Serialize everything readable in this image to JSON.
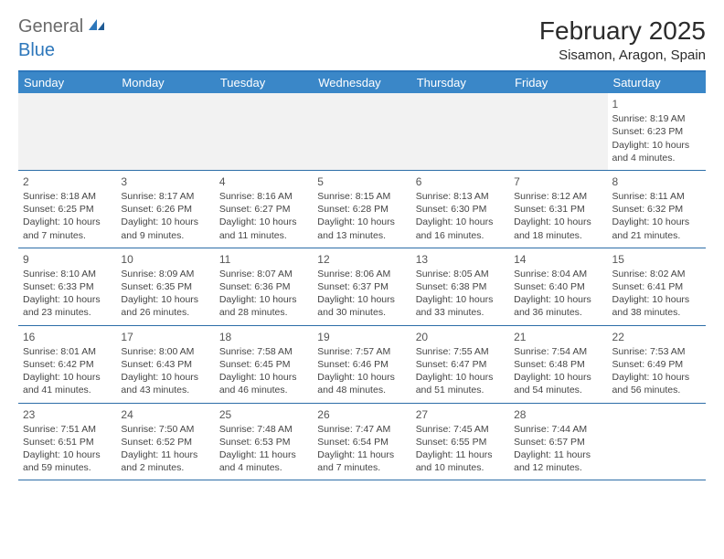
{
  "logo": {
    "general": "General",
    "blue": "Blue"
  },
  "title": "February 2025",
  "location": "Sisamon, Aragon, Spain",
  "colors": {
    "header_bg": "#3a87c8",
    "border": "#2d6ea8",
    "accent": "#2d77bb",
    "empty_bg": "#f2f2f2",
    "text": "#454545",
    "title_text": "#2b2b2b",
    "logo_gray": "#6a6a6a"
  },
  "typography": {
    "title_fontsize": 28,
    "location_fontsize": 15,
    "weekday_fontsize": 13,
    "daynum_fontsize": 12,
    "body_fontsize": 10.5
  },
  "weekdays": [
    "Sunday",
    "Monday",
    "Tuesday",
    "Wednesday",
    "Thursday",
    "Friday",
    "Saturday"
  ],
  "weeks": [
    [
      null,
      null,
      null,
      null,
      null,
      null,
      {
        "n": "1",
        "sr": "Sunrise: 8:19 AM",
        "ss": "Sunset: 6:23 PM",
        "d1": "Daylight: 10 hours",
        "d2": "and 4 minutes."
      }
    ],
    [
      {
        "n": "2",
        "sr": "Sunrise: 8:18 AM",
        "ss": "Sunset: 6:25 PM",
        "d1": "Daylight: 10 hours",
        "d2": "and 7 minutes."
      },
      {
        "n": "3",
        "sr": "Sunrise: 8:17 AM",
        "ss": "Sunset: 6:26 PM",
        "d1": "Daylight: 10 hours",
        "d2": "and 9 minutes."
      },
      {
        "n": "4",
        "sr": "Sunrise: 8:16 AM",
        "ss": "Sunset: 6:27 PM",
        "d1": "Daylight: 10 hours",
        "d2": "and 11 minutes."
      },
      {
        "n": "5",
        "sr": "Sunrise: 8:15 AM",
        "ss": "Sunset: 6:28 PM",
        "d1": "Daylight: 10 hours",
        "d2": "and 13 minutes."
      },
      {
        "n": "6",
        "sr": "Sunrise: 8:13 AM",
        "ss": "Sunset: 6:30 PM",
        "d1": "Daylight: 10 hours",
        "d2": "and 16 minutes."
      },
      {
        "n": "7",
        "sr": "Sunrise: 8:12 AM",
        "ss": "Sunset: 6:31 PM",
        "d1": "Daylight: 10 hours",
        "d2": "and 18 minutes."
      },
      {
        "n": "8",
        "sr": "Sunrise: 8:11 AM",
        "ss": "Sunset: 6:32 PM",
        "d1": "Daylight: 10 hours",
        "d2": "and 21 minutes."
      }
    ],
    [
      {
        "n": "9",
        "sr": "Sunrise: 8:10 AM",
        "ss": "Sunset: 6:33 PM",
        "d1": "Daylight: 10 hours",
        "d2": "and 23 minutes."
      },
      {
        "n": "10",
        "sr": "Sunrise: 8:09 AM",
        "ss": "Sunset: 6:35 PM",
        "d1": "Daylight: 10 hours",
        "d2": "and 26 minutes."
      },
      {
        "n": "11",
        "sr": "Sunrise: 8:07 AM",
        "ss": "Sunset: 6:36 PM",
        "d1": "Daylight: 10 hours",
        "d2": "and 28 minutes."
      },
      {
        "n": "12",
        "sr": "Sunrise: 8:06 AM",
        "ss": "Sunset: 6:37 PM",
        "d1": "Daylight: 10 hours",
        "d2": "and 30 minutes."
      },
      {
        "n": "13",
        "sr": "Sunrise: 8:05 AM",
        "ss": "Sunset: 6:38 PM",
        "d1": "Daylight: 10 hours",
        "d2": "and 33 minutes."
      },
      {
        "n": "14",
        "sr": "Sunrise: 8:04 AM",
        "ss": "Sunset: 6:40 PM",
        "d1": "Daylight: 10 hours",
        "d2": "and 36 minutes."
      },
      {
        "n": "15",
        "sr": "Sunrise: 8:02 AM",
        "ss": "Sunset: 6:41 PM",
        "d1": "Daylight: 10 hours",
        "d2": "and 38 minutes."
      }
    ],
    [
      {
        "n": "16",
        "sr": "Sunrise: 8:01 AM",
        "ss": "Sunset: 6:42 PM",
        "d1": "Daylight: 10 hours",
        "d2": "and 41 minutes."
      },
      {
        "n": "17",
        "sr": "Sunrise: 8:00 AM",
        "ss": "Sunset: 6:43 PM",
        "d1": "Daylight: 10 hours",
        "d2": "and 43 minutes."
      },
      {
        "n": "18",
        "sr": "Sunrise: 7:58 AM",
        "ss": "Sunset: 6:45 PM",
        "d1": "Daylight: 10 hours",
        "d2": "and 46 minutes."
      },
      {
        "n": "19",
        "sr": "Sunrise: 7:57 AM",
        "ss": "Sunset: 6:46 PM",
        "d1": "Daylight: 10 hours",
        "d2": "and 48 minutes."
      },
      {
        "n": "20",
        "sr": "Sunrise: 7:55 AM",
        "ss": "Sunset: 6:47 PM",
        "d1": "Daylight: 10 hours",
        "d2": "and 51 minutes."
      },
      {
        "n": "21",
        "sr": "Sunrise: 7:54 AM",
        "ss": "Sunset: 6:48 PM",
        "d1": "Daylight: 10 hours",
        "d2": "and 54 minutes."
      },
      {
        "n": "22",
        "sr": "Sunrise: 7:53 AM",
        "ss": "Sunset: 6:49 PM",
        "d1": "Daylight: 10 hours",
        "d2": "and 56 minutes."
      }
    ],
    [
      {
        "n": "23",
        "sr": "Sunrise: 7:51 AM",
        "ss": "Sunset: 6:51 PM",
        "d1": "Daylight: 10 hours",
        "d2": "and 59 minutes."
      },
      {
        "n": "24",
        "sr": "Sunrise: 7:50 AM",
        "ss": "Sunset: 6:52 PM",
        "d1": "Daylight: 11 hours",
        "d2": "and 2 minutes."
      },
      {
        "n": "25",
        "sr": "Sunrise: 7:48 AM",
        "ss": "Sunset: 6:53 PM",
        "d1": "Daylight: 11 hours",
        "d2": "and 4 minutes."
      },
      {
        "n": "26",
        "sr": "Sunrise: 7:47 AM",
        "ss": "Sunset: 6:54 PM",
        "d1": "Daylight: 11 hours",
        "d2": "and 7 minutes."
      },
      {
        "n": "27",
        "sr": "Sunrise: 7:45 AM",
        "ss": "Sunset: 6:55 PM",
        "d1": "Daylight: 11 hours",
        "d2": "and 10 minutes."
      },
      {
        "n": "28",
        "sr": "Sunrise: 7:44 AM",
        "ss": "Sunset: 6:57 PM",
        "d1": "Daylight: 11 hours",
        "d2": "and 12 minutes."
      },
      null
    ]
  ]
}
